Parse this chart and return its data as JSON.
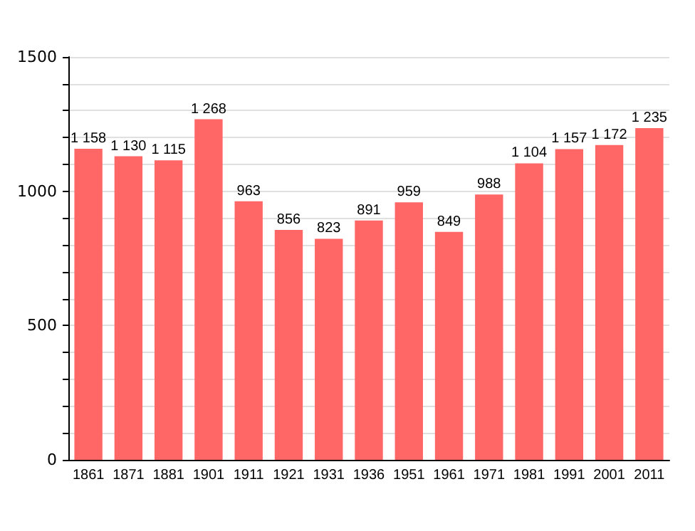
{
  "chart_data": {
    "type": "bar",
    "categories": [
      "1861",
      "1871",
      "1881",
      "1901",
      "1911",
      "1921",
      "1931",
      "1936",
      "1951",
      "1961",
      "1971",
      "1981",
      "1991",
      "2001",
      "2011"
    ],
    "values": [
      1158,
      1130,
      1115,
      1268,
      963,
      856,
      823,
      891,
      959,
      849,
      988,
      1104,
      1157,
      1172,
      1235
    ],
    "value_labels": [
      "1 158",
      "1 130",
      "1 115",
      "1 268",
      "963",
      "856",
      "823",
      "891",
      "959",
      "849",
      "988",
      "1 104",
      "1 157",
      "1 172",
      "1 235"
    ],
    "color": "#ff6666",
    "ylim": [
      0,
      1500
    ],
    "yticks": [
      0,
      {
        "value": 100,
        "label": null
      },
      {
        "value": 200,
        "label": null
      },
      {
        "value": 300,
        "label": null
      },
      {
        "value": 400,
        "label": null
      },
      500,
      {
        "value": 600,
        "label": null
      },
      {
        "value": 700,
        "label": null
      },
      {
        "value": 800,
        "label": null
      },
      {
        "value": 900,
        "label": null
      },
      1000,
      {
        "value": 1100,
        "label": null
      },
      {
        "value": 1200,
        "label": null
      },
      {
        "value": 1300,
        "label": null
      },
      {
        "value": 1400,
        "label": null
      },
      1500
    ],
    "grid": "y"
  }
}
